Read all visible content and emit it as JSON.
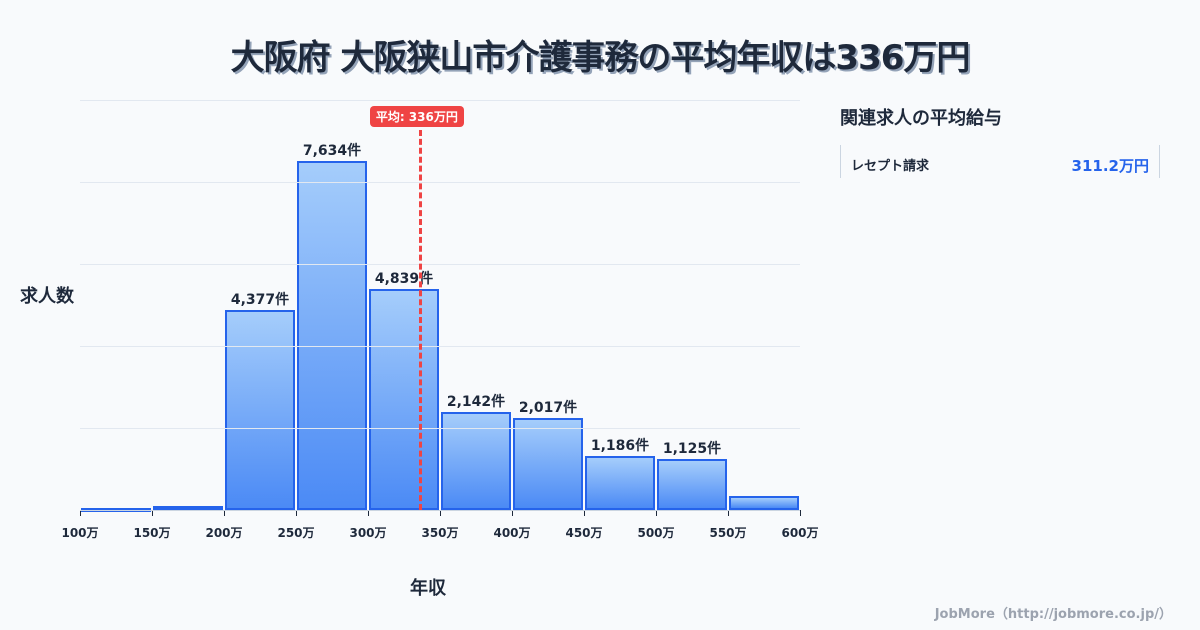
{
  "title": "大阪府 大阪狭山市介護事務の平均年収は336万円",
  "chart_data": {
    "type": "bar",
    "title": "大阪府 大阪狭山市介護事務の平均年収は336万円",
    "xlabel": "年収",
    "ylabel": "求人数",
    "categories": [
      "100-150万",
      "150-200万",
      "200-250万",
      "250-300万",
      "300-350万",
      "350-400万",
      "400-450万",
      "450-500万",
      "500-550万",
      "550-600万"
    ],
    "values": [
      40,
      90,
      4377,
      7634,
      4839,
      2142,
      2017,
      1186,
      1125,
      300
    ],
    "value_labels": [
      "",
      "",
      "4,377件",
      "7,634件",
      "4,839件",
      "2,142件",
      "2,017件",
      "1,186件",
      "1,125件",
      ""
    ],
    "x_ticks": [
      "100万",
      "150万",
      "200万",
      "250万",
      "300万",
      "350万",
      "400万",
      "450万",
      "500万",
      "550万",
      "600万"
    ],
    "xlim": [
      100,
      600
    ],
    "ylim": [
      0,
      8970
    ],
    "grid": true,
    "average": {
      "value": 336,
      "label": "平均: 336万円"
    }
  },
  "side": {
    "title": "関連求人の平均給与",
    "items": [
      {
        "name": "レセプト請求",
        "value": "311.2万円"
      }
    ]
  },
  "footer": "JobMore（http://jobmore.co.jp/）"
}
